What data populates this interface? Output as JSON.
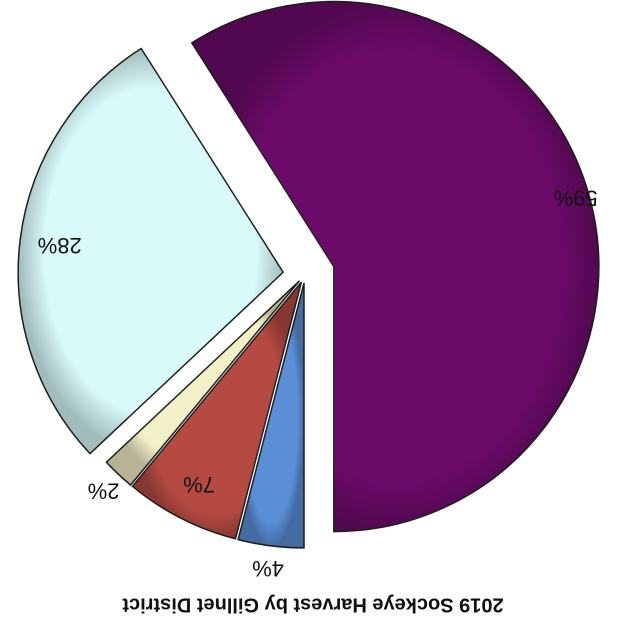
{
  "chart_data": {
    "type": "pie",
    "title": "2019 Sockeye Harvest by Gillnet District",
    "values": [
      59,
      4,
      7,
      2,
      28
    ],
    "value_labels": [
      "59%",
      "4%",
      "7%",
      "2%",
      "28%"
    ],
    "colors": [
      "#6c0a6a",
      "#5a8fd8",
      "#b54a42",
      "#f2f0c6",
      "#d8fafa"
    ]
  }
}
